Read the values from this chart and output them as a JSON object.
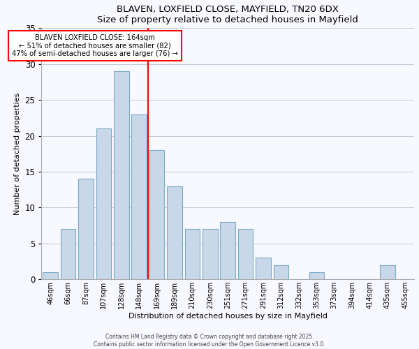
{
  "title": "BLAVEN, LOXFIELD CLOSE, MAYFIELD, TN20 6DX",
  "subtitle": "Size of property relative to detached houses in Mayfield",
  "xlabel": "Distribution of detached houses by size in Mayfield",
  "ylabel": "Number of detached properties",
  "bar_labels": [
    "46sqm",
    "66sqm",
    "87sqm",
    "107sqm",
    "128sqm",
    "148sqm",
    "169sqm",
    "189sqm",
    "210sqm",
    "230sqm",
    "251sqm",
    "271sqm",
    "291sqm",
    "312sqm",
    "332sqm",
    "353sqm",
    "373sqm",
    "394sqm",
    "414sqm",
    "435sqm",
    "455sqm"
  ],
  "bar_values": [
    1,
    7,
    14,
    21,
    29,
    23,
    18,
    13,
    7,
    7,
    8,
    7,
    3,
    2,
    0,
    1,
    0,
    0,
    0,
    2,
    0
  ],
  "bar_color": "#c8d8e8",
  "bar_edge_color": "#7aaac8",
  "vline_x": 5.5,
  "vline_color": "red",
  "ylim": [
    0,
    35
  ],
  "yticks": [
    0,
    5,
    10,
    15,
    20,
    25,
    30,
    35
  ],
  "annotation_title": "BLAVEN LOXFIELD CLOSE: 164sqm",
  "annotation_line1": "← 51% of detached houses are smaller (82)",
  "annotation_line2": "47% of semi-detached houses are larger (76) →",
  "annotation_box_color": "white",
  "annotation_box_edge": "red",
  "footer1": "Contains HM Land Registry data © Crown copyright and database right 2025.",
  "footer2": "Contains public sector information licensed under the Open Government Licence v3.0.",
  "background_color": "#f8f8ff",
  "grid_color": "#c0c8d8"
}
